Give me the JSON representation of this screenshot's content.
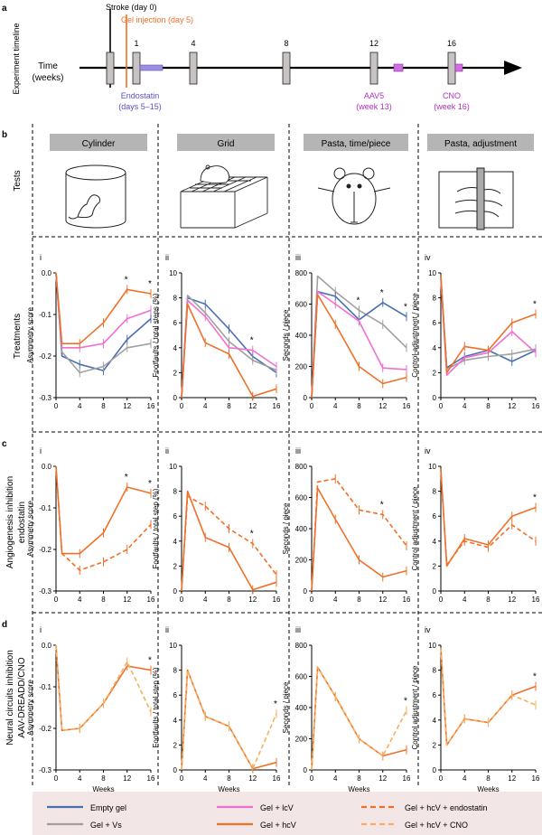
{
  "panel_letters": {
    "a": "a",
    "b": "b",
    "c": "c",
    "d": "d"
  },
  "timeline": {
    "side_label": "Experiment timeline",
    "axis_label_line1": "Time",
    "axis_label_line2": "(weeks)",
    "ticks": [
      "1",
      "4",
      "8",
      "12",
      "16"
    ],
    "stroke": "Stroke (day 0)",
    "gel": "Gel injection (day 5)",
    "endostatin_line1": "Endostatin",
    "endostatin_line2": "(days 5–15)",
    "aav5_line1": "AAV5",
    "aav5_line2": "(week 13)",
    "cno_line1": "CNO",
    "cno_line2": "(week 16)"
  },
  "tests": {
    "row_label": "Tests",
    "headers": [
      "Cylinder",
      "Grid",
      "Pasta, time/piece",
      "Pasta, adjustment"
    ]
  },
  "row_labels": {
    "treatments": "Treatments",
    "angio_line1": "Angiogenesis inhibition",
    "angio_line2": "endostatin",
    "neural_line1": "Neural circuits inhibition",
    "neural_line2": "AAV-DREADD/CNO"
  },
  "colors": {
    "empty_gel": "#4a6fb0",
    "vs": "#a0a0a0",
    "lcv": "#f06fd0",
    "hcv": "#f07028",
    "cno": "#f4b060",
    "legend_bg": "#f3e6e6"
  },
  "legend": [
    {
      "label": "Empty gel",
      "color": "#4a6fb0",
      "dash": false
    },
    {
      "label": "Gel + lcV",
      "color": "#f06fd0",
      "dash": false
    },
    {
      "label": "Gel + hcV + endostatin",
      "color": "#f07028",
      "dash": true
    },
    {
      "label": "Gel + Vs",
      "color": "#a0a0a0",
      "dash": false
    },
    {
      "label": "Gel + hcV",
      "color": "#f07028",
      "dash": false
    },
    {
      "label": "Gel + hcV + CNO",
      "color": "#f4b060",
      "dash": true
    }
  ],
  "chart_data": [
    {
      "type": "line",
      "panel": "b-i",
      "roman": "i",
      "ylabel": "Asymmetry score",
      "xlabel": "",
      "x": [
        0,
        1,
        4,
        8,
        12,
        16
      ],
      "xticks": [
        "0",
        "4",
        "8",
        "12",
        "16"
      ],
      "ylim": [
        -0.3,
        0.0
      ],
      "yticks": [
        "0.0",
        "-0.1",
        "-0.2",
        "-0.3"
      ],
      "stars": [
        12,
        16
      ],
      "series": [
        {
          "name": "Empty gel",
          "color": "#4a6fb0",
          "dash": false,
          "values": [
            0.0,
            -0.2,
            -0.22,
            -0.235,
            -0.16,
            -0.11
          ]
        },
        {
          "name": "Gel + Vs",
          "color": "#a0a0a0",
          "dash": false,
          "values": [
            0.0,
            -0.19,
            -0.24,
            -0.225,
            -0.18,
            -0.17
          ]
        },
        {
          "name": "Gel + lcV",
          "color": "#f06fd0",
          "dash": false,
          "values": [
            0.0,
            -0.18,
            -0.18,
            -0.17,
            -0.11,
            -0.09
          ]
        },
        {
          "name": "Gel + hcV",
          "color": "#f07028",
          "dash": false,
          "values": [
            0.0,
            -0.17,
            -0.17,
            -0.12,
            -0.04,
            -0.05
          ]
        }
      ]
    },
    {
      "type": "line",
      "panel": "b-ii",
      "roman": "ii",
      "ylabel": "Footfaults / total steps (%)",
      "xlabel": "",
      "x": [
        0,
        1,
        4,
        8,
        12,
        16
      ],
      "xticks": [
        "0",
        "4",
        "8",
        "12",
        "16"
      ],
      "ylim": [
        0,
        10
      ],
      "yticks": [
        "0",
        "2",
        "4",
        "6",
        "8",
        "10"
      ],
      "stars": [
        12
      ],
      "series": [
        {
          "name": "Empty gel",
          "color": "#4a6fb0",
          "dash": false,
          "values": [
            0,
            8.0,
            7.5,
            5.5,
            3.3,
            2.0
          ]
        },
        {
          "name": "Gel + Vs",
          "color": "#a0a0a0",
          "dash": false,
          "values": [
            0,
            8.2,
            6.8,
            4.5,
            3.0,
            2.2
          ]
        },
        {
          "name": "Gel + lcV",
          "color": "#f06fd0",
          "dash": false,
          "values": [
            0,
            7.8,
            6.5,
            4.0,
            3.8,
            2.5
          ]
        },
        {
          "name": "Gel + hcV",
          "color": "#f07028",
          "dash": false,
          "values": [
            0,
            7.5,
            4.4,
            3.5,
            0.1,
            0.7
          ]
        }
      ]
    },
    {
      "type": "line",
      "panel": "b-iii",
      "roman": "iii",
      "ylabel": "Seconds / piece",
      "xlabel": "",
      "x": [
        0,
        1,
        4,
        8,
        12,
        16
      ],
      "xticks": [
        "0",
        "4",
        "8",
        "12",
        "16"
      ],
      "ylim": [
        0,
        800
      ],
      "yticks": [
        "0",
        "200",
        "400",
        "600",
        "800"
      ],
      "stars": [
        8,
        12,
        16
      ],
      "series": [
        {
          "name": "Gel + Vs",
          "color": "#a0a0a0",
          "dash": false,
          "values": [
            0,
            780,
            680,
            560,
            470,
            320
          ]
        },
        {
          "name": "Empty gel",
          "color": "#4a6fb0",
          "dash": false,
          "values": [
            0,
            680,
            650,
            500,
            610,
            520
          ]
        },
        {
          "name": "Gel + lcV",
          "color": "#f06fd0",
          "dash": false,
          "values": [
            0,
            680,
            600,
            490,
            190,
            180
          ]
        },
        {
          "name": "Gel + hcV",
          "color": "#f07028",
          "dash": false,
          "values": [
            0,
            660,
            470,
            200,
            90,
            130
          ]
        }
      ]
    },
    {
      "type": "line",
      "panel": "b-iv",
      "roman": "iv",
      "ylabel": "Control-adjustment / piece",
      "xlabel": "",
      "x": [
        0,
        1,
        4,
        8,
        12,
        16
      ],
      "xticks": [
        "0",
        "4",
        "8",
        "12",
        "16"
      ],
      "ylim": [
        0,
        10
      ],
      "yticks": [
        "0",
        "2",
        "4",
        "6",
        "8",
        "10"
      ],
      "stars": [
        16
      ],
      "series": [
        {
          "name": "Empty gel",
          "color": "#4a6fb0",
          "dash": false,
          "values": [
            9.7,
            2.4,
            3.3,
            3.8,
            2.9,
            3.8
          ]
        },
        {
          "name": "Gel + Vs",
          "color": "#a0a0a0",
          "dash": false,
          "values": [
            9.5,
            2.3,
            3.0,
            3.3,
            3.5,
            3.9
          ]
        },
        {
          "name": "Gel + lcV",
          "color": "#f06fd0",
          "dash": false,
          "values": [
            9.6,
            1.8,
            3.2,
            3.6,
            5.3,
            3.6
          ]
        },
        {
          "name": "Gel + hcV",
          "color": "#f07028",
          "dash": false,
          "values": [
            9.8,
            2.0,
            4.1,
            3.8,
            6.0,
            6.7
          ]
        }
      ]
    },
    {
      "type": "line",
      "panel": "c-i",
      "roman": "i",
      "ylabel": "Asymmetry score",
      "xlabel": "",
      "x": [
        0,
        1,
        4,
        8,
        12,
        16
      ],
      "xticks": [
        "0",
        "4",
        "8",
        "12",
        "16"
      ],
      "ylim": [
        -0.3,
        0.0
      ],
      "yticks": [
        "0.0",
        "-0.1",
        "-0.2",
        "-0.3"
      ],
      "stars": [
        12,
        16
      ],
      "series": [
        {
          "name": "Gel + hcV",
          "color": "#f07028",
          "dash": false,
          "values": [
            0.0,
            -0.21,
            -0.21,
            -0.16,
            -0.05,
            -0.065
          ]
        },
        {
          "name": "Gel + hcV + endostatin",
          "color": "#f07028",
          "dash": true,
          "values": [
            0.0,
            -0.21,
            -0.25,
            -0.23,
            -0.2,
            -0.14
          ]
        }
      ]
    },
    {
      "type": "line",
      "panel": "c-ii",
      "roman": "ii",
      "ylabel": "Footfaults / total step (%)",
      "xlabel": "",
      "x": [
        0,
        1,
        4,
        8,
        12,
        16
      ],
      "xticks": [
        "0",
        "4",
        "8",
        "12",
        "16"
      ],
      "ylim": [
        0,
        10
      ],
      "yticks": [
        "0",
        "2",
        "4",
        "6",
        "8",
        "10"
      ],
      "stars": [
        12
      ],
      "series": [
        {
          "name": "Gel + hcV",
          "color": "#f07028",
          "dash": false,
          "values": [
            0,
            8.0,
            4.3,
            3.5,
            0.1,
            0.7
          ]
        },
        {
          "name": "Gel + hcV + endostatin",
          "color": "#f07028",
          "dash": true,
          "values": [
            0,
            7.6,
            6.8,
            5.0,
            3.8,
            1.3
          ]
        }
      ]
    },
    {
      "type": "line",
      "panel": "c-iii",
      "roman": "iii",
      "ylabel": "Seconds / piece",
      "xlabel": "",
      "x": [
        0,
        1,
        4,
        8,
        12,
        16
      ],
      "xticks": [
        "0",
        "4",
        "8",
        "12",
        "16"
      ],
      "ylim": [
        0,
        800
      ],
      "yticks": [
        "0",
        "200",
        "400",
        "600",
        "800"
      ],
      "stars": [
        12
      ],
      "series": [
        {
          "name": "Gel + hcV",
          "color": "#f07028",
          "dash": false,
          "values": [
            0,
            660,
            460,
            200,
            90,
            130
          ]
        },
        {
          "name": "Gel + hcV + endostatin",
          "color": "#f07028",
          "dash": true,
          "values": [
            0,
            700,
            720,
            520,
            490,
            290
          ]
        }
      ]
    },
    {
      "type": "line",
      "panel": "c-iv",
      "roman": "iv",
      "ylabel": "Control adjustment / piece",
      "xlabel": "",
      "x": [
        0,
        1,
        4,
        8,
        12,
        16
      ],
      "xticks": [
        "0",
        "4",
        "8",
        "12",
        "16"
      ],
      "ylim": [
        0,
        10
      ],
      "yticks": [
        "0",
        "2",
        "4",
        "6",
        "8",
        "10"
      ],
      "stars": [
        16
      ],
      "series": [
        {
          "name": "Gel + hcV",
          "color": "#f07028",
          "dash": false,
          "values": [
            9.8,
            2.0,
            4.2,
            3.7,
            6.0,
            6.7
          ]
        },
        {
          "name": "Gel + hcV + endostatin",
          "color": "#f07028",
          "dash": true,
          "values": [
            9.7,
            2.1,
            4.0,
            3.5,
            5.3,
            4.0
          ]
        }
      ]
    },
    {
      "type": "line",
      "panel": "d-i",
      "roman": "i",
      "ylabel": "Asymmetry score",
      "xlabel": "Weeks",
      "x": [
        0,
        1,
        4,
        8,
        12,
        16
      ],
      "xticks": [
        "0",
        "4",
        "8",
        "12",
        "16"
      ],
      "ylim": [
        -0.3,
        0.0
      ],
      "yticks": [
        "0.0",
        "-0.1",
        "-0.2",
        "-0.3"
      ],
      "stars": [
        16
      ],
      "series": [
        {
          "name": "Gel + hcV",
          "color": "#f07028",
          "dash": false,
          "values": [
            0.0,
            -0.205,
            -0.2,
            -0.14,
            -0.05,
            -0.06
          ]
        },
        {
          "name": "Gel + hcV + CNO",
          "color": "#f4b060",
          "dash": true,
          "values": [
            0.0,
            -0.205,
            -0.2,
            -0.14,
            -0.04,
            -0.16
          ]
        }
      ]
    },
    {
      "type": "line",
      "panel": "d-ii",
      "roman": "ii",
      "ylabel": "Footfaults / total step (%)",
      "xlabel": "Weeks",
      "x": [
        0,
        1,
        4,
        8,
        12,
        16
      ],
      "xticks": [
        "0",
        "4",
        "8",
        "12",
        "16"
      ],
      "ylim": [
        0,
        10
      ],
      "yticks": [
        "0",
        "2",
        "4",
        "6",
        "8",
        "10"
      ],
      "stars": [
        16
      ],
      "series": [
        {
          "name": "Gel + hcV",
          "color": "#f07028",
          "dash": false,
          "values": [
            0,
            8.0,
            4.3,
            3.5,
            0.1,
            0.6
          ]
        },
        {
          "name": "Gel + hcV + CNO",
          "color": "#f4b060",
          "dash": true,
          "values": [
            0,
            8.0,
            4.3,
            3.5,
            0.1,
            4.5
          ]
        }
      ]
    },
    {
      "type": "line",
      "panel": "d-iii",
      "roman": "iii",
      "ylabel": "Seconds / piece",
      "xlabel": "Weeks",
      "x": [
        0,
        1,
        4,
        8,
        12,
        16
      ],
      "xticks": [
        "0",
        "4",
        "8",
        "12",
        "16"
      ],
      "ylim": [
        0,
        800
      ],
      "yticks": [
        "0",
        "200",
        "400",
        "600",
        "800"
      ],
      "stars": [
        16
      ],
      "series": [
        {
          "name": "Gel + hcV",
          "color": "#f07028",
          "dash": false,
          "values": [
            0,
            660,
            470,
            200,
            90,
            130
          ]
        },
        {
          "name": "Gel + hcV + CNO",
          "color": "#f4b060",
          "dash": true,
          "values": [
            0,
            660,
            470,
            200,
            90,
            380
          ]
        }
      ]
    },
    {
      "type": "line",
      "panel": "d-iv",
      "roman": "iv",
      "ylabel": "Control adjustment / piece",
      "xlabel": "Weeks",
      "x": [
        0,
        1,
        4,
        8,
        12,
        16
      ],
      "xticks": [
        "0",
        "4",
        "8",
        "12",
        "16"
      ],
      "ylim": [
        0,
        10
      ],
      "yticks": [
        "0",
        "2",
        "4",
        "6",
        "8",
        "10"
      ],
      "stars": [
        16
      ],
      "series": [
        {
          "name": "Gel + hcV",
          "color": "#f07028",
          "dash": false,
          "values": [
            9.8,
            2.0,
            4.1,
            3.8,
            6.0,
            6.7
          ]
        },
        {
          "name": "Gel + hcV + CNO",
          "color": "#f4b060",
          "dash": true,
          "values": [
            9.8,
            2.0,
            4.1,
            3.8,
            6.0,
            5.2
          ]
        }
      ]
    }
  ]
}
